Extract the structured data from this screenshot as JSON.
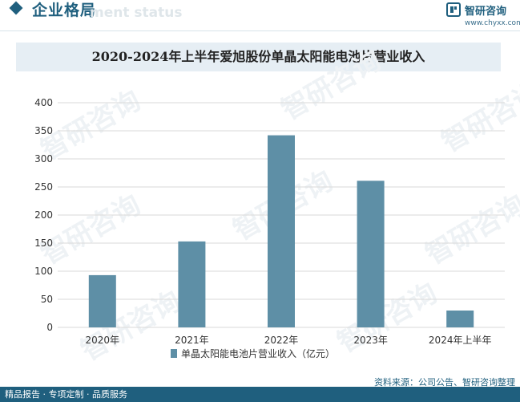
{
  "header": {
    "section_title": "企业格局",
    "section_subtitle": "ment status",
    "brand_name": "智研咨询",
    "brand_url": "www.chyxx.com"
  },
  "watermark": {
    "text": "智研咨询"
  },
  "footer": {
    "tagline": "精品报告 · 专项定制 · 品质服务",
    "source": "资料来源：公司公告、智研咨询整理"
  },
  "colors": {
    "bar": "#5e8fa6",
    "brand": "#1f5f7e",
    "title_band": "#e6eef4"
  },
  "chart_data": {
    "type": "bar",
    "title": "2020-2024年上半年爱旭股份单晶太阳能电池片营业收入",
    "categories": [
      "2020年",
      "2021年",
      "2022年",
      "2023年",
      "2024年上半年"
    ],
    "series": [
      {
        "name": "单晶太阳能电池片营业收入（亿元）",
        "values": [
          93,
          153,
          342,
          261,
          30
        ]
      }
    ],
    "ylim": [
      0,
      400
    ],
    "yticks": [
      0,
      50,
      100,
      150,
      200,
      250,
      300,
      350,
      400
    ],
    "grid": true,
    "legend_position": "bottom"
  }
}
